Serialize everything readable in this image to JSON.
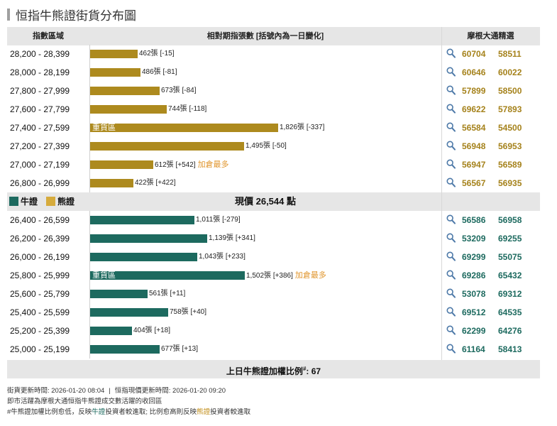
{
  "title": "恒指牛熊證街貨分布圖",
  "header": {
    "col_range": "指數區域",
    "col_bars": "相對期指張數 [括號內為一日變化]",
    "col_warrants": "摩根大通精選"
  },
  "legend": {
    "bull_label": "牛證",
    "bear_label": "熊證"
  },
  "current_price": "現價 26,544 點",
  "colors": {
    "bear_bar": "#ad8a1e",
    "bull_bar": "#1d6a5f",
    "most_added": "#e0952c",
    "band": "#e6e6e6"
  },
  "chart_data": {
    "type": "bar",
    "orientation": "horizontal",
    "unit": "張",
    "title": "恒指牛熊證街貨分布圖",
    "bear_series": {
      "name": "熊證",
      "rows": [
        {
          "range": "28,200 - 28,399",
          "value": 462,
          "value_label": "462張",
          "change_label": "[-15]",
          "heavy": "",
          "note": "",
          "warrants": [
            "60704",
            "58511"
          ]
        },
        {
          "range": "28,000 - 28,199",
          "value": 486,
          "value_label": "486張",
          "change_label": "[-81]",
          "heavy": "",
          "note": "",
          "warrants": [
            "60646",
            "60022"
          ]
        },
        {
          "range": "27,800 - 27,999",
          "value": 673,
          "value_label": "673張",
          "change_label": "[-84]",
          "heavy": "",
          "note": "",
          "warrants": [
            "57899",
            "58500"
          ]
        },
        {
          "range": "27,600 - 27,799",
          "value": 744,
          "value_label": "744張",
          "change_label": "[-118]",
          "heavy": "",
          "note": "",
          "warrants": [
            "69622",
            "57893"
          ]
        },
        {
          "range": "27,400 - 27,599",
          "value": 1826,
          "value_label": "1,826張",
          "change_label": "[-337]",
          "heavy": "重貨區",
          "note": "",
          "warrants": [
            "56584",
            "54500"
          ]
        },
        {
          "range": "27,200 - 27,399",
          "value": 1495,
          "value_label": "1,495張",
          "change_label": "[-50]",
          "heavy": "",
          "note": "",
          "warrants": [
            "56948",
            "56953"
          ]
        },
        {
          "range": "27,000 - 27,199",
          "value": 612,
          "value_label": "612張",
          "change_label": "[+542]",
          "heavy": "",
          "note": "加倉最多",
          "warrants": [
            "56947",
            "56589"
          ]
        },
        {
          "range": "26,800 - 26,999",
          "value": 422,
          "value_label": "422張",
          "change_label": "[+422]",
          "heavy": "",
          "note": "",
          "warrants": [
            "56567",
            "56935"
          ]
        }
      ]
    },
    "bull_series": {
      "name": "牛證",
      "rows": [
        {
          "range": "26,400 - 26,599",
          "value": 1011,
          "value_label": "1,011張",
          "change_label": "[-279]",
          "heavy": "",
          "note": "",
          "warrants": [
            "56586",
            "56958"
          ]
        },
        {
          "range": "26,200 - 26,399",
          "value": 1139,
          "value_label": "1,139張",
          "change_label": "[+341]",
          "heavy": "",
          "note": "",
          "warrants": [
            "53209",
            "69255"
          ]
        },
        {
          "range": "26,000 - 26,199",
          "value": 1043,
          "value_label": "1,043張",
          "change_label": "[+233]",
          "heavy": "",
          "note": "",
          "warrants": [
            "69299",
            "55075"
          ]
        },
        {
          "range": "25,800 - 25,999",
          "value": 1502,
          "value_label": "1,502張",
          "change_label": "[+386]",
          "heavy": "重貨區",
          "note": "加倉最多",
          "warrants": [
            "69286",
            "65432"
          ]
        },
        {
          "range": "25,600 - 25,799",
          "value": 561,
          "value_label": "561張",
          "change_label": "[+11]",
          "heavy": "",
          "note": "",
          "warrants": [
            "53078",
            "69312"
          ]
        },
        {
          "range": "25,400 - 25,599",
          "value": 758,
          "value_label": "758張",
          "change_label": "[+40]",
          "heavy": "",
          "note": "",
          "warrants": [
            "69512",
            "64535"
          ]
        },
        {
          "range": "25,200 - 25,399",
          "value": 404,
          "value_label": "404張",
          "change_label": "[+18]",
          "heavy": "",
          "note": "",
          "warrants": [
            "62299",
            "64276"
          ]
        },
        {
          "range": "25,000 - 25,199",
          "value": 677,
          "value_label": "677張",
          "change_label": "[+13]",
          "heavy": "",
          "note": "",
          "warrants": [
            "61164",
            "58413"
          ]
        }
      ]
    }
  },
  "footer": {
    "ratio_label": "上日牛熊證加權比例",
    "ratio_mark": "#",
    "ratio_value": ": 67"
  },
  "notes": {
    "line1_a": "街貨更新時間: 2026-01-20 08:04",
    "line1_sep": "|",
    "line1_b": "恒指現價更新時間: 2026-01-20 09:20",
    "line2": "即市活躍為摩根大通恒指牛熊證成交數活躍的收回區",
    "line3_a": "#牛熊證加權比例愈低，反映",
    "line3_bull": "牛證",
    "line3_b": "投資者較進取; 比例愈高則反映",
    "line3_bear": "熊證",
    "line3_c": "投資者較進取"
  }
}
